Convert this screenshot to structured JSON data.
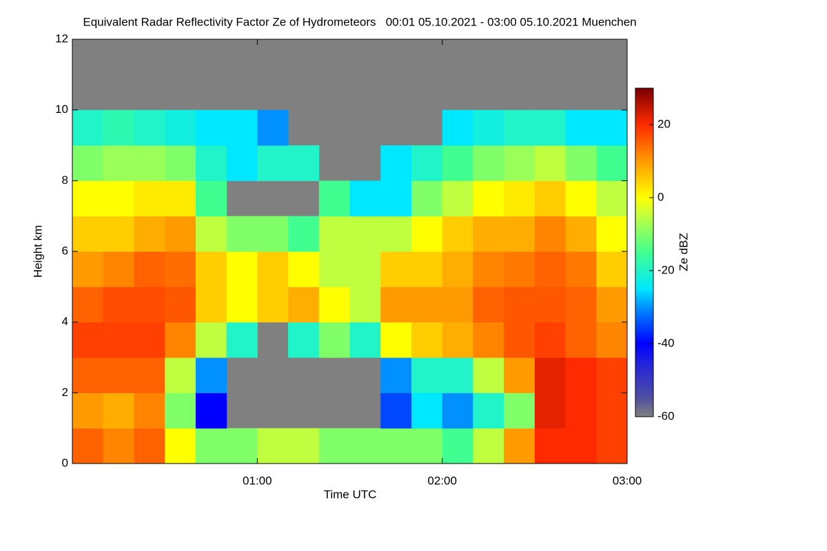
{
  "chart_data": {
    "type": "heatmap",
    "title": "Equivalent Radar Reflectivity Factor Ze of Hydrometeors   00:01 05.10.2021 - 03:00 05.10.2021 Muenchen",
    "x_label": "Time UTC",
    "y_label": "Height km",
    "colorbar_label": "Ze dBZ",
    "xlim": [
      0,
      180
    ],
    "xticks": [
      {
        "value": 60,
        "label": "01:00"
      },
      {
        "value": 120,
        "label": "02:00"
      },
      {
        "value": 180,
        "label": "03:00"
      }
    ],
    "ylim": [
      0,
      12
    ],
    "yticks": [
      0,
      2,
      4,
      6,
      8,
      10,
      12
    ],
    "clim": [
      -60,
      30
    ],
    "cticks": [
      20,
      0,
      -20,
      -40,
      -60
    ],
    "background": "#808080",
    "colormap": [
      [
        -60,
        "#808080"
      ],
      [
        -55,
        "#5050a0"
      ],
      [
        -45,
        "#2020e0"
      ],
      [
        -40,
        "#0000ff"
      ],
      [
        -30,
        "#0090ff"
      ],
      [
        -25,
        "#00e8ff"
      ],
      [
        -15,
        "#40ff90"
      ],
      [
        -5,
        "#c0ff40"
      ],
      [
        0,
        "#ffff00"
      ],
      [
        10,
        "#ff9a00"
      ],
      [
        20,
        "#ff2a00"
      ],
      [
        30,
        "#7a0000"
      ]
    ],
    "xbins": [
      0,
      10,
      20,
      30,
      40,
      50,
      60,
      70,
      80,
      90,
      100,
      110,
      120,
      130,
      140,
      150,
      160,
      170,
      180
    ],
    "ybins": [
      0,
      1,
      2,
      3,
      4,
      5,
      6,
      7,
      8,
      9,
      10,
      11,
      12
    ],
    "z": [
      [
        15,
        12,
        15,
        0,
        -10,
        -10,
        -5,
        -5,
        -10,
        -10,
        -10,
        -10,
        -15,
        -5,
        10,
        20,
        20,
        18
      ],
      [
        10,
        8,
        12,
        -10,
        -40,
        null,
        null,
        null,
        null,
        null,
        -35,
        -25,
        -30,
        -20,
        -10,
        22,
        20,
        18
      ],
      [
        15,
        15,
        15,
        -5,
        -30,
        null,
        null,
        null,
        null,
        null,
        -30,
        -20,
        -20,
        -5,
        10,
        22,
        20,
        18
      ],
      [
        18,
        18,
        18,
        12,
        -5,
        -20,
        null,
        -20,
        -10,
        -20,
        0,
        5,
        8,
        12,
        16,
        18,
        15,
        12
      ],
      [
        15,
        17,
        17,
        16,
        5,
        0,
        5,
        8,
        0,
        -5,
        10,
        10,
        10,
        15,
        16,
        16,
        15,
        10
      ],
      [
        10,
        12,
        15,
        14,
        5,
        0,
        5,
        0,
        -5,
        -5,
        5,
        5,
        8,
        12,
        13,
        15,
        13,
        5
      ],
      [
        5,
        5,
        8,
        10,
        -5,
        -10,
        -10,
        -15,
        -5,
        -5,
        -5,
        0,
        5,
        8,
        8,
        12,
        8,
        0
      ],
      [
        0,
        0,
        2,
        2,
        -15,
        null,
        null,
        null,
        -15,
        -25,
        -25,
        -10,
        -5,
        0,
        2,
        5,
        0,
        -5
      ],
      [
        -10,
        -8,
        -8,
        -10,
        -20,
        -25,
        -20,
        -20,
        null,
        null,
        -25,
        -20,
        -15,
        -10,
        -8,
        -5,
        -10,
        -15
      ],
      [
        -20,
        -18,
        -20,
        -22,
        -25,
        -25,
        -30,
        null,
        null,
        null,
        null,
        null,
        -25,
        -22,
        -20,
        -20,
        -25,
        -25
      ],
      [
        null,
        null,
        null,
        null,
        null,
        null,
        null,
        null,
        null,
        null,
        null,
        null,
        null,
        null,
        null,
        null,
        null,
        null
      ],
      [
        null,
        null,
        null,
        null,
        null,
        null,
        null,
        null,
        null,
        null,
        null,
        null,
        null,
        null,
        null,
        null,
        null,
        null
      ]
    ]
  }
}
